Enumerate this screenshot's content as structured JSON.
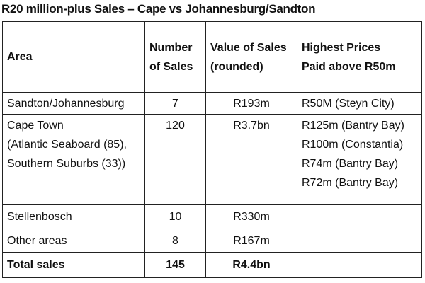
{
  "title": "R20 million-plus Sales – Cape vs Johannesburg/Sandton",
  "headers": {
    "area": "Area",
    "number_line1": "Number",
    "number_line2": "of Sales",
    "value_line1": "Value of Sales",
    "value_line2": "(rounded)",
    "highest_line1": "Highest Prices",
    "highest_line2": "Paid above R50m"
  },
  "rows": [
    {
      "area_lines": [
        "Sandton/Johannesburg"
      ],
      "number": "7",
      "value": "R193m",
      "highest_lines": [
        "R50M (Steyn City)"
      ]
    },
    {
      "area_lines": [
        "Cape Town",
        "(Atlantic Seaboard (85),",
        "Southern Suburbs (33))"
      ],
      "number": "120",
      "value": "R3.7bn",
      "highest_lines": [
        "R125m (Bantry Bay)",
        "R100m (Constantia)",
        "R74m (Bantry Bay)",
        "R72m (Bantry Bay)"
      ]
    },
    {
      "area_lines": [
        "Stellenbosch"
      ],
      "number": "10",
      "value": "R330m",
      "highest_lines": []
    },
    {
      "area_lines": [
        "Other areas"
      ],
      "number": "8",
      "value": "R167m",
      "highest_lines": []
    }
  ],
  "total": {
    "label": "Total sales",
    "number": "145",
    "value": "R4.4bn"
  }
}
